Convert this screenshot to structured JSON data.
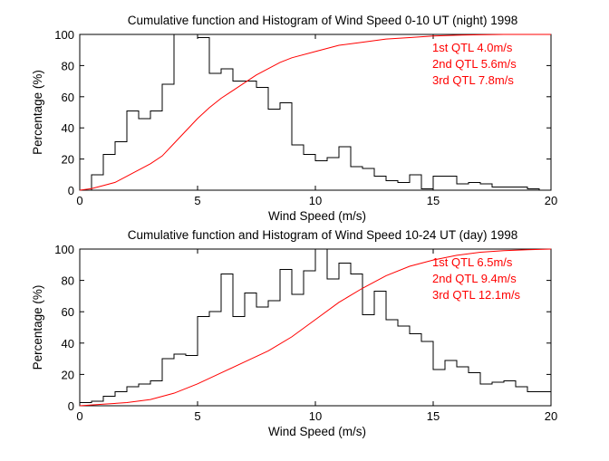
{
  "chart_data": [
    {
      "type": "line",
      "title": "Cumulative function and Histogram of Wind Speed 0-10 UT (night) 1998",
      "xlabel": "Wind Speed (m/s)",
      "ylabel": "Percentage (%)",
      "xlim": [
        0,
        20
      ],
      "ylim": [
        0,
        100
      ],
      "xticks": [
        0,
        5,
        10,
        15,
        20
      ],
      "yticks": [
        0,
        20,
        40,
        60,
        80,
        100
      ],
      "colors": {
        "histogram": "#000000",
        "cumulative": "#ff0000",
        "annotation": "#ff0000"
      },
      "annotations": [
        "1st QTL 4.0m/s",
        "2nd QTL 5.6m/s",
        "3rd QTL 7.8m/s"
      ],
      "series": [
        {
          "name": "Histogram",
          "style": "stairs",
          "bin_edges": [
            0,
            0.5,
            1,
            1.5,
            2,
            2.5,
            3,
            3.5,
            4,
            4.5,
            5,
            5.5,
            6,
            6.5,
            7,
            7.5,
            8,
            8.5,
            9,
            9.5,
            10,
            10.5,
            11,
            11.5,
            12,
            12.5,
            13,
            13.5,
            14,
            14.5,
            15,
            15.5,
            16,
            16.5,
            17,
            17.5,
            18,
            18.5,
            19,
            19.5
          ],
          "values": [
            0,
            10,
            23,
            31,
            51,
            46,
            51,
            68,
            100,
            100,
            98,
            75,
            78,
            70,
            70,
            66,
            52,
            56,
            29,
            23,
            19,
            21,
            28,
            15,
            14,
            9,
            6,
            5,
            10,
            1,
            9,
            9,
            4,
            5,
            4,
            2,
            2,
            2,
            1,
            0
          ]
        },
        {
          "name": "Cumulative",
          "style": "line",
          "x": [
            0,
            0.5,
            1,
            1.5,
            2,
            2.5,
            3,
            3.5,
            4,
            4.5,
            5,
            5.5,
            6,
            6.5,
            7,
            7.5,
            8,
            8.5,
            9,
            10,
            11,
            12,
            13,
            14,
            15,
            16,
            17,
            18,
            19,
            20
          ],
          "y": [
            0,
            1,
            3,
            5,
            9,
            13,
            17,
            22,
            30,
            38,
            46,
            53,
            59,
            64,
            69,
            74,
            78,
            82,
            85,
            89,
            93,
            95,
            97,
            98,
            99,
            99.5,
            99.8,
            100,
            100,
            100
          ]
        }
      ]
    },
    {
      "type": "line",
      "title": "Cumulative function and Histogram of Wind Speed 10-24 UT (day) 1998",
      "xlabel": "Wind Speed (m/s)",
      "ylabel": "Percentage (%)",
      "xlim": [
        0,
        20
      ],
      "ylim": [
        0,
        100
      ],
      "xticks": [
        0,
        5,
        10,
        15,
        20
      ],
      "yticks": [
        0,
        20,
        40,
        60,
        80,
        100
      ],
      "colors": {
        "histogram": "#000000",
        "cumulative": "#ff0000",
        "annotation": "#ff0000"
      },
      "annotations": [
        "1st QTL 6.5m/s",
        "2nd QTL 9.4m/s",
        "3rd QTL 12.1m/s"
      ],
      "series": [
        {
          "name": "Histogram",
          "style": "stairs",
          "bin_edges": [
            0,
            0.5,
            1,
            1.5,
            2,
            2.5,
            3,
            3.5,
            4,
            4.5,
            5,
            5.5,
            6,
            6.5,
            7,
            7.5,
            8,
            8.5,
            9,
            9.5,
            10,
            10.5,
            11,
            11.5,
            12,
            12.5,
            13,
            13.5,
            14,
            14.5,
            15,
            15.5,
            16,
            16.5,
            17,
            17.5,
            18,
            18.5,
            19,
            19.5
          ],
          "end": 20,
          "values": [
            2,
            3,
            6,
            9,
            12,
            14,
            16,
            30,
            33,
            32,
            57,
            60,
            84,
            57,
            72,
            63,
            67,
            87,
            71,
            86,
            100,
            81,
            91,
            84,
            58,
            73,
            55,
            51,
            46,
            41,
            23,
            29,
            25,
            21,
            14,
            15,
            16,
            12,
            9,
            9
          ]
        },
        {
          "name": "Cumulative",
          "style": "line",
          "x": [
            0,
            1,
            2,
            3,
            4,
            5,
            6,
            7,
            8,
            9,
            10,
            11,
            12,
            13,
            14,
            15,
            16,
            17,
            18,
            19,
            20
          ],
          "y": [
            0,
            1,
            2,
            4,
            8,
            14,
            21,
            28,
            35,
            44,
            55,
            66,
            75,
            83,
            89,
            93,
            96,
            98,
            99,
            99.6,
            100
          ]
        }
      ]
    }
  ]
}
